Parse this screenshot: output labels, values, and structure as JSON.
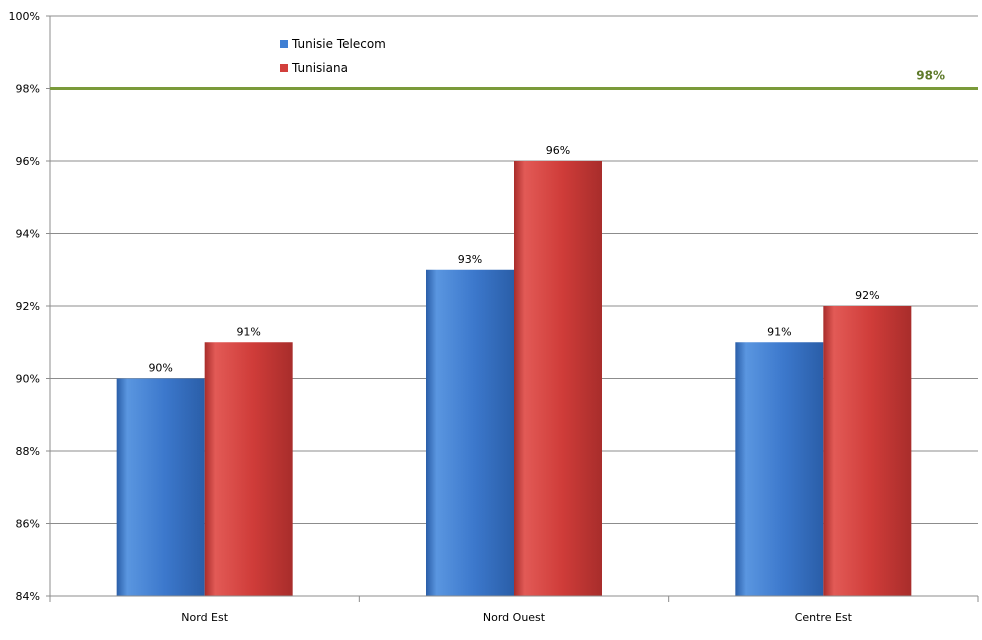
{
  "chart_data": {
    "type": "bar",
    "categories": [
      "Nord Est",
      "Nord Ouest",
      "Centre Est"
    ],
    "series": [
      {
        "name": "Tunisie Telecom",
        "values": [
          90,
          93,
          91
        ],
        "labels": [
          "90%",
          "93%",
          "91%"
        ],
        "color": "#3f7fd3"
      },
      {
        "name": "Tunisiana",
        "values": [
          91,
          96,
          92
        ],
        "labels": [
          "91%",
          "96%",
          "92%"
        ],
        "color": "#d23f3c"
      }
    ],
    "ylim": [
      84,
      100
    ],
    "yticks": [
      84,
      86,
      88,
      90,
      92,
      94,
      96,
      98,
      100
    ],
    "ytick_labels": [
      "84%",
      "86%",
      "88%",
      "90%",
      "92%",
      "94%",
      "96%",
      "98%",
      "100%"
    ],
    "reference_line": {
      "value": 98,
      "label": "98%",
      "color": "#7a9a3a"
    },
    "grid": true,
    "legend_position": "top-left"
  }
}
